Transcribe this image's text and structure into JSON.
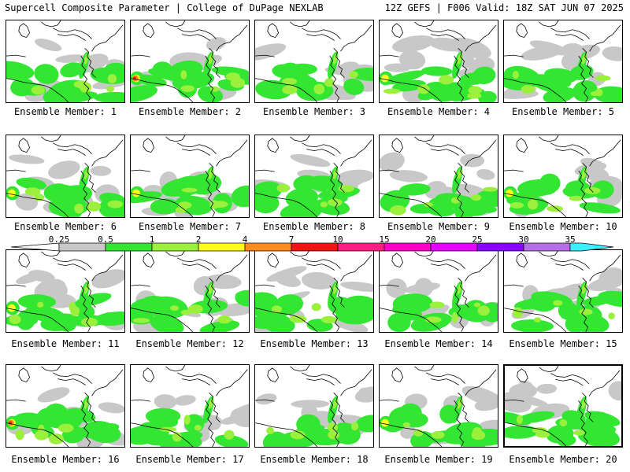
{
  "header": {
    "left": "Supercell Composite Parameter | College of DuPage NEXLAB",
    "right": "12Z GEFS | F006 Valid: 18Z SAT JUN 07 2025"
  },
  "members": [
    {
      "label": "Ensemble Member: 1",
      "selected": false
    },
    {
      "label": "Ensemble Member: 2",
      "selected": false
    },
    {
      "label": "Ensemble Member: 3",
      "selected": false
    },
    {
      "label": "Ensemble Member: 4",
      "selected": false
    },
    {
      "label": "Ensemble Member: 5",
      "selected": false
    },
    {
      "label": "Ensemble Member: 6",
      "selected": false
    },
    {
      "label": "Ensemble Member: 7",
      "selected": false
    },
    {
      "label": "Ensemble Member: 8",
      "selected": false
    },
    {
      "label": "Ensemble Member: 9",
      "selected": false
    },
    {
      "label": "Ensemble Member: 10",
      "selected": false
    },
    {
      "label": "Ensemble Member: 11",
      "selected": false
    },
    {
      "label": "Ensemble Member: 12",
      "selected": false
    },
    {
      "label": "Ensemble Member: 13",
      "selected": false
    },
    {
      "label": "Ensemble Member: 14",
      "selected": false
    },
    {
      "label": "Ensemble Member: 15",
      "selected": false
    },
    {
      "label": "Ensemble Member: 16",
      "selected": false
    },
    {
      "label": "Ensemble Member: 17",
      "selected": false
    },
    {
      "label": "Ensemble Member: 18",
      "selected": false
    },
    {
      "label": "Ensemble Member: 19",
      "selected": false
    },
    {
      "label": "Ensemble Member: 20",
      "selected": true
    }
  ],
  "colorbar": {
    "labels": [
      "0.25",
      "0.5",
      "1",
      "2",
      "4",
      "7",
      "10",
      "15",
      "20",
      "25",
      "30",
      "35"
    ],
    "colors": [
      "#c8c8c8",
      "#32e632",
      "#9bf03c",
      "#ffff1e",
      "#ff8c1e",
      "#f01414",
      "#ff1e82",
      "#ff00c8",
      "#e600ff",
      "#8c00ff",
      "#b46ee6",
      "#3cf0ff"
    ]
  },
  "shading": {
    "gray": "#c8c8c8",
    "green": "#32e632",
    "light_green": "#9bf03c",
    "yellow": "#ffff1e",
    "orange": "#ff8c1e",
    "red": "#f01414"
  }
}
